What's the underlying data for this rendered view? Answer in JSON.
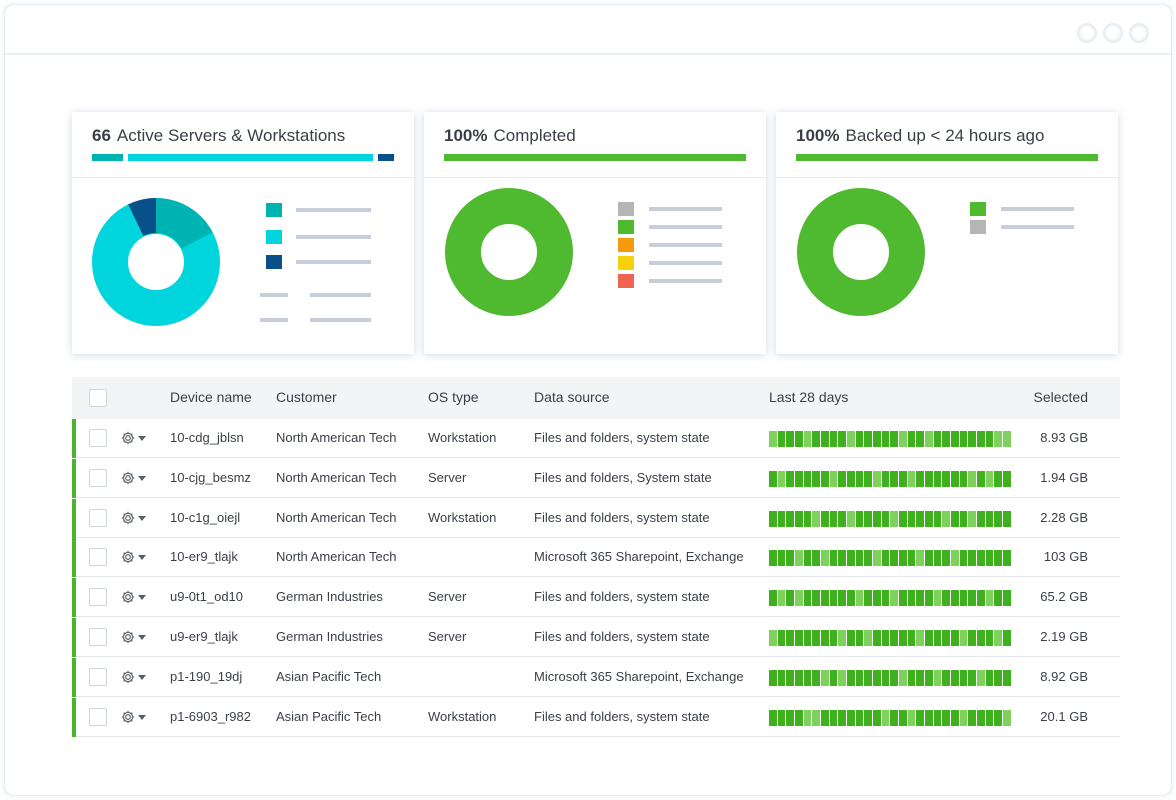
{
  "cards": [
    {
      "bold": "66",
      "text": "Active Servers & Workstations",
      "chart_colors": [
        "#00b3b3",
        "#00d5dd",
        "#07508a"
      ],
      "chart_values": [
        0.19,
        0.74,
        0.07
      ]
    },
    {
      "bold": "100%",
      "text": "Completed",
      "chart_colors": [
        "#4fb92f"
      ],
      "legend_colors": [
        "#b5b5b5",
        "#4fb92f",
        "#f59a0a",
        "#f6d10e",
        "#f06350"
      ]
    },
    {
      "bold": "100%",
      "text": "Backed up < 24 hours ago",
      "chart_colors": [
        "#4fb92f"
      ],
      "legend_colors": [
        "#4fb92f",
        "#b5b5b5"
      ]
    }
  ],
  "table": {
    "headers": {
      "device": "Device name",
      "customer": "Customer",
      "os": "OS type",
      "source": "Data source",
      "history": "Last 28 days",
      "selected": "Selected"
    },
    "rows": [
      {
        "device": "10-cdg_jblsn",
        "customer": "North American Tech",
        "os": "Workstation",
        "source": "Files and folders, system state",
        "selected": "8.93 GB"
      },
      {
        "device": "10-cjg_besmz",
        "customer": "North American Tech",
        "os": "Server",
        "source": "Files and folders, System state",
        "selected": "1.94 GB"
      },
      {
        "device": "10-c1g_oiejl",
        "customer": "North American Tech",
        "os": "Workstation",
        "source": "Files and folders, system state",
        "selected": "2.28 GB"
      },
      {
        "device": "10-er9_tlajk",
        "customer": "North American Tech",
        "os": "",
        "source": "Microsoft 365 Sharepoint, Exchange",
        "selected": "103 GB"
      },
      {
        "device": "u9-0t1_od10",
        "customer": "German Industries",
        "os": "Server",
        "source": "Files and folders, system state",
        "selected": "65.2 GB"
      },
      {
        "device": "u9-er9_tlajk",
        "customer": "German Industries",
        "os": "Server",
        "source": "Files and folders, system state",
        "selected": "2.19 GB"
      },
      {
        "device": "p1-190_19dj",
        "customer": "Asian Pacific Tech",
        "os": "",
        "source": "Microsoft 365 Sharepoint, Exchange",
        "selected": "8.92 GB"
      },
      {
        "device": "p1-6903_r982",
        "customer": "Asian Pacific Tech",
        "os": "Workstation",
        "source": "Files and folders, system state",
        "selected": "20.1 GB"
      }
    ],
    "status_color": "#4ab52a",
    "history_colors": [
      "#3fb11f",
      "#7fd15e"
    ]
  }
}
